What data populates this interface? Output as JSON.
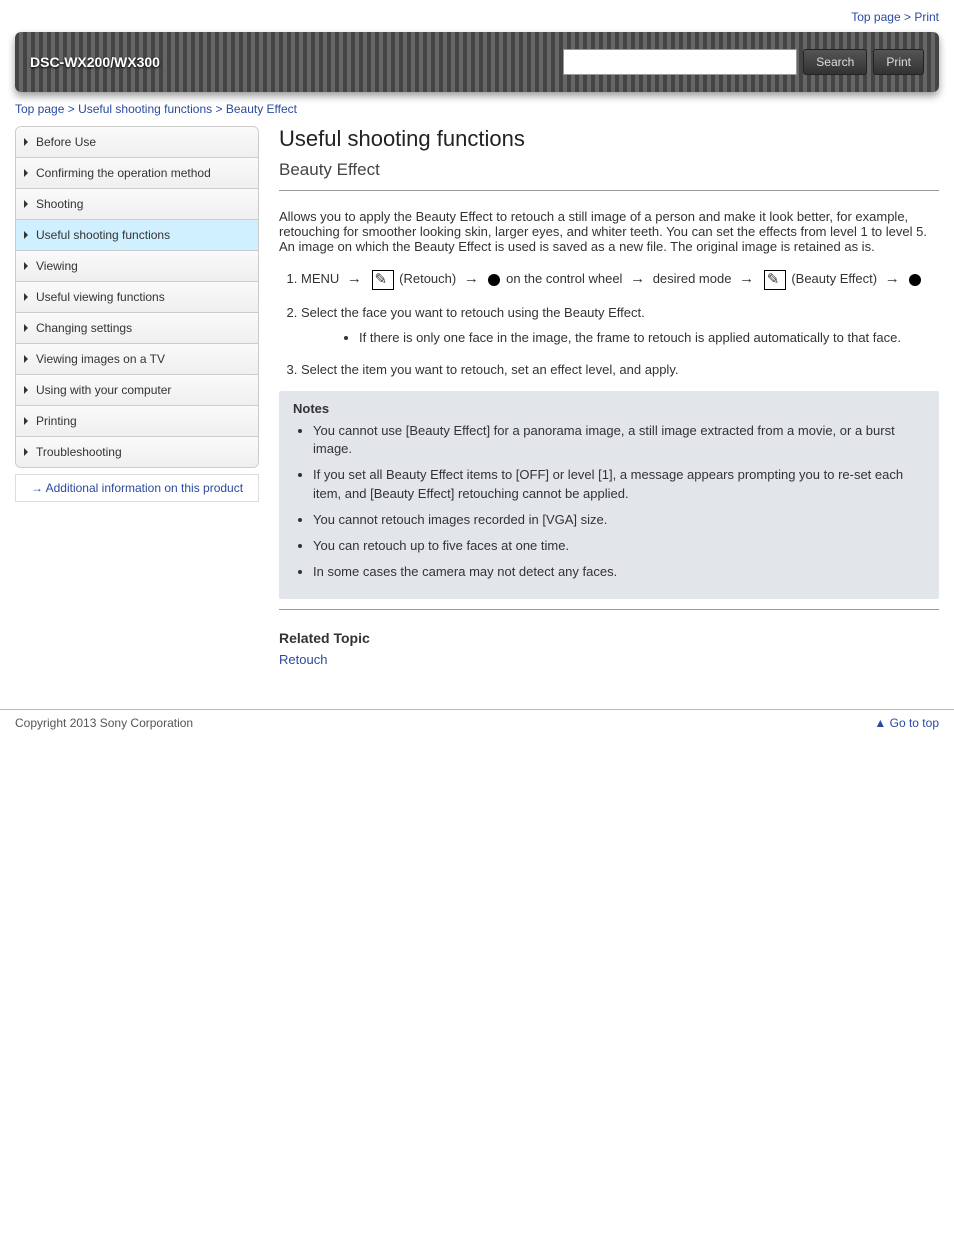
{
  "top_links": {
    "top": "Top page",
    "sep": " > ",
    "print": "Print"
  },
  "header": {
    "product": "DSC-WX200/WX300",
    "search_btn": "Search",
    "print_btn": "Print"
  },
  "crumbs": {
    "top": "Top page",
    "sep": " > ",
    "cat": "Useful shooting functions",
    "sep2": " > ",
    "page": "Beauty Effect"
  },
  "sidebar": {
    "items": [
      {
        "label": "Before Use",
        "active": false
      },
      {
        "label": "Confirming the operation method",
        "active": false
      },
      {
        "label": "Shooting",
        "active": false
      },
      {
        "label": "Useful shooting functions",
        "active": true
      },
      {
        "label": "Viewing",
        "active": false
      },
      {
        "label": "Useful viewing functions",
        "active": false
      },
      {
        "label": "Changing settings",
        "active": false
      },
      {
        "label": "Viewing images on a TV",
        "active": false
      },
      {
        "label": "Using with your computer",
        "active": false
      },
      {
        "label": "Printing",
        "active": false
      },
      {
        "label": "Troubleshooting",
        "active": false
      }
    ],
    "additional": {
      "arrow": "→",
      "label": "Additional information on this product"
    }
  },
  "content": {
    "category": "Useful shooting functions",
    "title": "Beauty Effect",
    "desc": "Allows you to apply the Beauty Effect to retouch a still image of a person and make it look better, for example, retouching for smoother looking skin, larger eyes, and whiter teeth. You can set the effects from level 1 to level 5. An image on which the Beauty Effect is used is saved as a new file. The original image is retained as is.",
    "steps": [
      {
        "pre1": "MENU ",
        "icon1": true,
        "mid": " (Retouch) ",
        "dot1": true,
        "post1": " on the control wheel ",
        "pre2": " desired mode ",
        "icon2": true,
        "mid2": " (Beauty Effect) ",
        "dot2": true,
        "step1_full": true
      },
      {
        "text": "Select the face you want to retouch using the Beauty Effect.",
        "sub": "If there is only one face in the image, the frame to retouch is applied automatically to that face."
      },
      {
        "text": "Select the item you want to retouch, set an effect level, and apply."
      }
    ],
    "notes_label": "Notes",
    "notes": [
      "You cannot use [Beauty Effect] for a panorama image, a still image extracted from a movie, or a burst image.",
      "If you set all Beauty Effect items to [OFF] or level [1], a message appears prompting you to re-set each item, and [Beauty Effect] retouching cannot be applied.",
      "You cannot retouch images recorded in [VGA] size.",
      "You can retouch up to five faces at one time.",
      "In some cases the camera may not detect any faces."
    ],
    "related_label": "Related Topic",
    "related": [
      "Retouch"
    ]
  },
  "footer": {
    "copyright": "Copyright 2013 Sony Corporation",
    "top_link": "Go to top"
  }
}
